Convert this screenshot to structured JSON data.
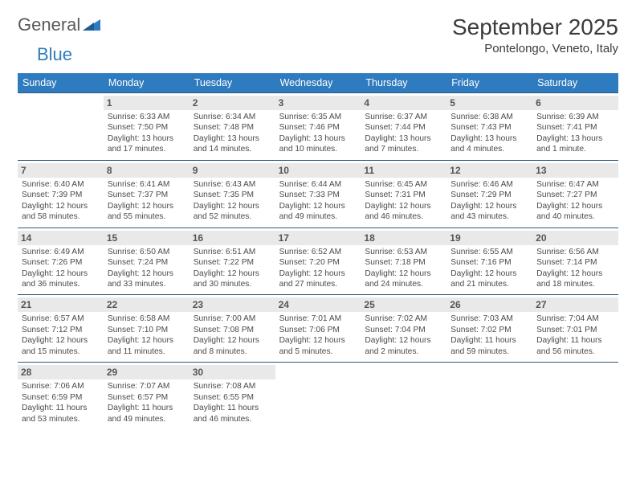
{
  "logo": {
    "text1": "General",
    "text2": "Blue"
  },
  "title": "September 2025",
  "subtitle": "Pontelongo, Veneto, Italy",
  "colors": {
    "header_bg": "#2f7bbf",
    "header_text": "#ffffff",
    "week_border": "#315a7c",
    "daynum_bg": "#e9e9e9",
    "text": "#4a4a4a"
  },
  "dayNames": [
    "Sunday",
    "Monday",
    "Tuesday",
    "Wednesday",
    "Thursday",
    "Friday",
    "Saturday"
  ],
  "weeks": [
    [
      null,
      {
        "n": "1",
        "sr": "6:33 AM",
        "ss": "7:50 PM",
        "dl": "13 hours and 17 minutes."
      },
      {
        "n": "2",
        "sr": "6:34 AM",
        "ss": "7:48 PM",
        "dl": "13 hours and 14 minutes."
      },
      {
        "n": "3",
        "sr": "6:35 AM",
        "ss": "7:46 PM",
        "dl": "13 hours and 10 minutes."
      },
      {
        "n": "4",
        "sr": "6:37 AM",
        "ss": "7:44 PM",
        "dl": "13 hours and 7 minutes."
      },
      {
        "n": "5",
        "sr": "6:38 AM",
        "ss": "7:43 PM",
        "dl": "13 hours and 4 minutes."
      },
      {
        "n": "6",
        "sr": "6:39 AM",
        "ss": "7:41 PM",
        "dl": "13 hours and 1 minute."
      }
    ],
    [
      {
        "n": "7",
        "sr": "6:40 AM",
        "ss": "7:39 PM",
        "dl": "12 hours and 58 minutes."
      },
      {
        "n": "8",
        "sr": "6:41 AM",
        "ss": "7:37 PM",
        "dl": "12 hours and 55 minutes."
      },
      {
        "n": "9",
        "sr": "6:43 AM",
        "ss": "7:35 PM",
        "dl": "12 hours and 52 minutes."
      },
      {
        "n": "10",
        "sr": "6:44 AM",
        "ss": "7:33 PM",
        "dl": "12 hours and 49 minutes."
      },
      {
        "n": "11",
        "sr": "6:45 AM",
        "ss": "7:31 PM",
        "dl": "12 hours and 46 minutes."
      },
      {
        "n": "12",
        "sr": "6:46 AM",
        "ss": "7:29 PM",
        "dl": "12 hours and 43 minutes."
      },
      {
        "n": "13",
        "sr": "6:47 AM",
        "ss": "7:27 PM",
        "dl": "12 hours and 40 minutes."
      }
    ],
    [
      {
        "n": "14",
        "sr": "6:49 AM",
        "ss": "7:26 PM",
        "dl": "12 hours and 36 minutes."
      },
      {
        "n": "15",
        "sr": "6:50 AM",
        "ss": "7:24 PM",
        "dl": "12 hours and 33 minutes."
      },
      {
        "n": "16",
        "sr": "6:51 AM",
        "ss": "7:22 PM",
        "dl": "12 hours and 30 minutes."
      },
      {
        "n": "17",
        "sr": "6:52 AM",
        "ss": "7:20 PM",
        "dl": "12 hours and 27 minutes."
      },
      {
        "n": "18",
        "sr": "6:53 AM",
        "ss": "7:18 PM",
        "dl": "12 hours and 24 minutes."
      },
      {
        "n": "19",
        "sr": "6:55 AM",
        "ss": "7:16 PM",
        "dl": "12 hours and 21 minutes."
      },
      {
        "n": "20",
        "sr": "6:56 AM",
        "ss": "7:14 PM",
        "dl": "12 hours and 18 minutes."
      }
    ],
    [
      {
        "n": "21",
        "sr": "6:57 AM",
        "ss": "7:12 PM",
        "dl": "12 hours and 15 minutes."
      },
      {
        "n": "22",
        "sr": "6:58 AM",
        "ss": "7:10 PM",
        "dl": "12 hours and 11 minutes."
      },
      {
        "n": "23",
        "sr": "7:00 AM",
        "ss": "7:08 PM",
        "dl": "12 hours and 8 minutes."
      },
      {
        "n": "24",
        "sr": "7:01 AM",
        "ss": "7:06 PM",
        "dl": "12 hours and 5 minutes."
      },
      {
        "n": "25",
        "sr": "7:02 AM",
        "ss": "7:04 PM",
        "dl": "12 hours and 2 minutes."
      },
      {
        "n": "26",
        "sr": "7:03 AM",
        "ss": "7:02 PM",
        "dl": "11 hours and 59 minutes."
      },
      {
        "n": "27",
        "sr": "7:04 AM",
        "ss": "7:01 PM",
        "dl": "11 hours and 56 minutes."
      }
    ],
    [
      {
        "n": "28",
        "sr": "7:06 AM",
        "ss": "6:59 PM",
        "dl": "11 hours and 53 minutes."
      },
      {
        "n": "29",
        "sr": "7:07 AM",
        "ss": "6:57 PM",
        "dl": "11 hours and 49 minutes."
      },
      {
        "n": "30",
        "sr": "7:08 AM",
        "ss": "6:55 PM",
        "dl": "11 hours and 46 minutes."
      },
      null,
      null,
      null,
      null
    ]
  ],
  "labels": {
    "sunrise": "Sunrise:",
    "sunset": "Sunset:",
    "daylight": "Daylight:"
  }
}
